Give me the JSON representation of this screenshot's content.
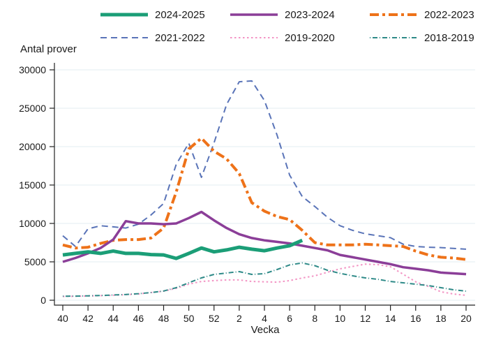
{
  "chart_data": {
    "type": "line",
    "title": "",
    "ylabel": "Antal prover",
    "xlabel": "Vecka",
    "ylim": [
      0,
      30000
    ],
    "yticks": [
      0,
      5000,
      10000,
      15000,
      20000,
      25000,
      30000
    ],
    "grid": "horizontal-light",
    "legend_position": "top",
    "x_weeks": [
      40,
      41,
      42,
      43,
      44,
      45,
      46,
      47,
      48,
      49,
      50,
      51,
      52,
      1,
      2,
      3,
      4,
      5,
      6,
      7,
      8,
      9,
      10,
      11,
      12,
      13,
      14,
      15,
      16,
      17,
      18,
      19,
      20
    ],
    "xtick_weeks": [
      40,
      42,
      44,
      46,
      48,
      50,
      52,
      2,
      4,
      6,
      8,
      10,
      12,
      14,
      16,
      18,
      20
    ],
    "series": [
      {
        "name": "2024-2025",
        "color": "#1b9e77",
        "style": "solid-thick",
        "width": 5,
        "values": [
          5900,
          6100,
          6300,
          6100,
          6400,
          6100,
          6100,
          5950,
          5900,
          5450,
          6100,
          6800,
          6300,
          6550,
          6900,
          6650,
          6450,
          6800,
          7100,
          7800,
          null,
          null,
          null,
          null,
          null,
          null,
          null,
          null,
          null,
          null,
          null,
          null,
          null
        ]
      },
      {
        "name": "2023-2024",
        "color": "#8b3e98",
        "style": "solid",
        "width": 3.5,
        "values": [
          5000,
          5500,
          6100,
          6800,
          7900,
          10300,
          10000,
          10000,
          9900,
          10000,
          10700,
          11500,
          10400,
          9400,
          8600,
          8100,
          7800,
          7600,
          7400,
          7100,
          6800,
          6500,
          5900,
          5600,
          5300,
          5000,
          4700,
          4300,
          4100,
          3900,
          3600,
          3500,
          3400
        ]
      },
      {
        "name": "2022-2023",
        "color": "#ee7219",
        "style": "dashdot-thick",
        "width": 4,
        "values": [
          7200,
          6800,
          6900,
          7400,
          7800,
          7900,
          7900,
          8100,
          9400,
          14100,
          19700,
          21100,
          19400,
          18400,
          16500,
          12700,
          11600,
          10900,
          10500,
          9100,
          7500,
          7200,
          7200,
          7200,
          7300,
          7200,
          7100,
          7000,
          6400,
          5900,
          5600,
          5500,
          5300
        ]
      },
      {
        "name": "2021-2022",
        "color": "#5a74b8",
        "style": "dashed",
        "width": 2,
        "values": [
          8400,
          7000,
          9300,
          9700,
          9550,
          9400,
          9900,
          11100,
          12600,
          17700,
          20450,
          16000,
          20500,
          25500,
          28450,
          28550,
          26000,
          21500,
          16300,
          13500,
          12200,
          10800,
          9700,
          9100,
          8650,
          8400,
          8150,
          7300,
          7000,
          6900,
          6850,
          6750,
          6650
        ]
      },
      {
        "name": "2019-2020",
        "color": "#f394c4",
        "style": "dotted",
        "width": 2,
        "values": [
          500,
          520,
          550,
          600,
          650,
          730,
          820,
          1000,
          1180,
          1550,
          2090,
          2450,
          2550,
          2650,
          2650,
          2450,
          2400,
          2350,
          2550,
          2900,
          3180,
          3650,
          4090,
          4400,
          4700,
          4640,
          4360,
          3400,
          2400,
          1800,
          1100,
          820,
          640
        ]
      },
      {
        "name": "2018-2019",
        "color": "#2e8a88",
        "style": "dashdot-thin",
        "width": 2,
        "values": [
          520,
          540,
          570,
          620,
          680,
          750,
          850,
          1000,
          1200,
          1640,
          2270,
          2910,
          3360,
          3545,
          3730,
          3360,
          3455,
          4000,
          4600,
          4850,
          4500,
          3900,
          3500,
          3180,
          2910,
          2730,
          2450,
          2270,
          2090,
          1910,
          1640,
          1360,
          1180
        ]
      }
    ]
  }
}
